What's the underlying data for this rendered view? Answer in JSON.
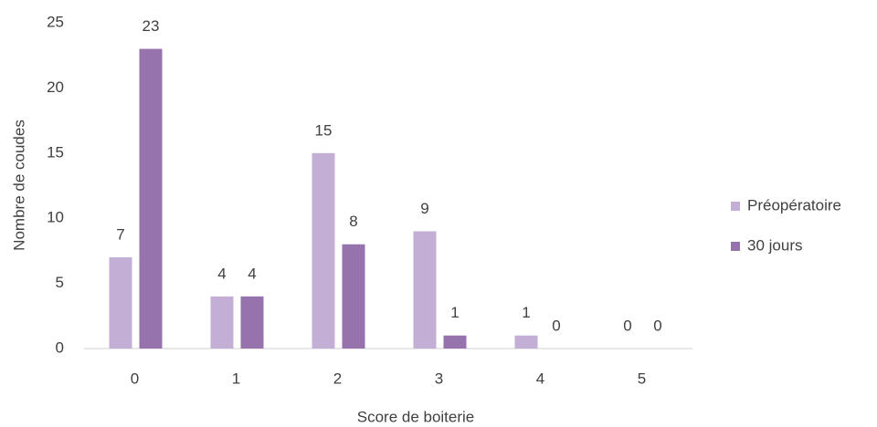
{
  "chart_data": {
    "type": "bar",
    "xlabel": "Score de boiterie",
    "ylabel": "Nombre de coudes",
    "categories": [
      "0",
      "1",
      "2",
      "3",
      "4",
      "5"
    ],
    "series": [
      {
        "name": "Préopératoire",
        "color": "#c3aed6",
        "values": [
          7,
          4,
          15,
          9,
          1,
          0
        ]
      },
      {
        "name": "30 jours",
        "color": "#9673ad",
        "values": [
          23,
          4,
          8,
          1,
          0,
          0
        ]
      }
    ],
    "ylim": [
      0,
      25
    ],
    "yticks": [
      0,
      5,
      10,
      15,
      20,
      25
    ],
    "legend": "right"
  }
}
